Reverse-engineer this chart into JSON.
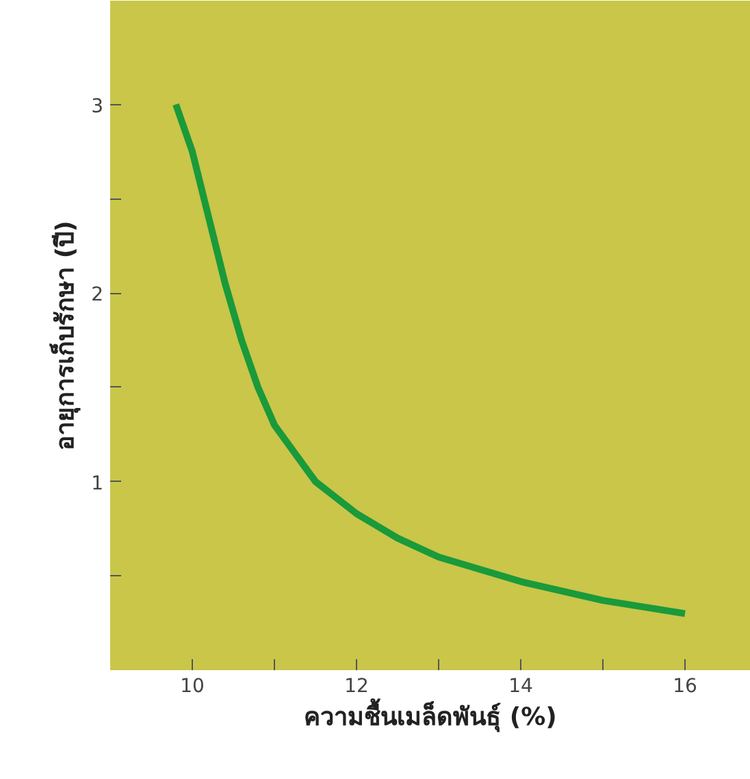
{
  "chart_data": {
    "type": "line",
    "xlabel": "ความชื้นเมล็ดพันธุ์ (%)",
    "ylabel": "อายุการเก็บรักษา (ปี)",
    "x": [
      9.8,
      10.0,
      10.2,
      10.4,
      10.6,
      10.8,
      11.0,
      11.5,
      12.0,
      12.5,
      13.0,
      14.0,
      15.0,
      16.0
    ],
    "series": [
      {
        "color": "#1a9a3a",
        "values": [
          3.0,
          2.75,
          2.4,
          2.05,
          1.75,
          1.5,
          1.3,
          1.0,
          0.83,
          0.7,
          0.6,
          0.47,
          0.37,
          0.3
        ]
      }
    ],
    "xlim": [
      9.0,
      16.8
    ],
    "ylim": [
      0,
      3.55
    ],
    "xticks": [
      10,
      {
        "value": 11,
        "label": null
      },
      12,
      {
        "value": 13,
        "label": null
      },
      14,
      {
        "value": 15,
        "label": null
      },
      16
    ],
    "yticks": [
      {
        "value": 0.5,
        "label": null
      },
      1,
      {
        "value": 1.5,
        "label": null
      },
      2,
      {
        "value": 2.5,
        "label": null
      },
      3
    ],
    "grid": false,
    "line_style": "solid",
    "marker": "none"
  }
}
